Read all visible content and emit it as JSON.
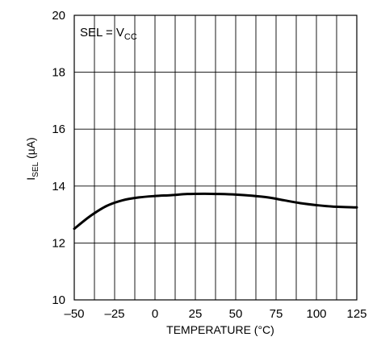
{
  "chart_data": {
    "type": "line",
    "title": "",
    "annotation": {
      "text": "SEL = V",
      "subscript": "CC",
      "position": "top-left"
    },
    "xlabel": "TEMPERATURE (°C)",
    "ylabel": {
      "main": "I",
      "subscript": "SEL",
      "unit": " (µA)"
    },
    "xlim": [
      -50,
      125
    ],
    "ylim": [
      10,
      20
    ],
    "xticks": [
      -50,
      -25,
      0,
      25,
      50,
      75,
      100,
      125
    ],
    "xtick_labels": [
      "–50",
      "–25",
      "0",
      "25",
      "50",
      "75",
      "100",
      "125"
    ],
    "yticks": [
      10,
      12,
      14,
      16,
      18,
      20
    ],
    "ytick_labels": [
      "10",
      "12",
      "14",
      "16",
      "18",
      "20"
    ],
    "xgrid": [
      -50,
      -37.5,
      -25,
      -12.5,
      0,
      12.5,
      25,
      37.5,
      50,
      62.5,
      75,
      87.5,
      100,
      112.5,
      125
    ],
    "ygrid": [
      10,
      12,
      14,
      16,
      18,
      20
    ],
    "grid": true,
    "series": [
      {
        "x": [
          -50,
          -40,
          -30,
          -20,
          -10,
          0,
          10,
          20,
          30,
          40,
          50,
          60,
          70,
          80,
          90,
          100,
          110,
          125
        ],
        "y": [
          12.5,
          12.95,
          13.3,
          13.5,
          13.6,
          13.65,
          13.68,
          13.72,
          13.73,
          13.72,
          13.7,
          13.66,
          13.6,
          13.5,
          13.4,
          13.33,
          13.28,
          13.25
        ]
      }
    ]
  }
}
